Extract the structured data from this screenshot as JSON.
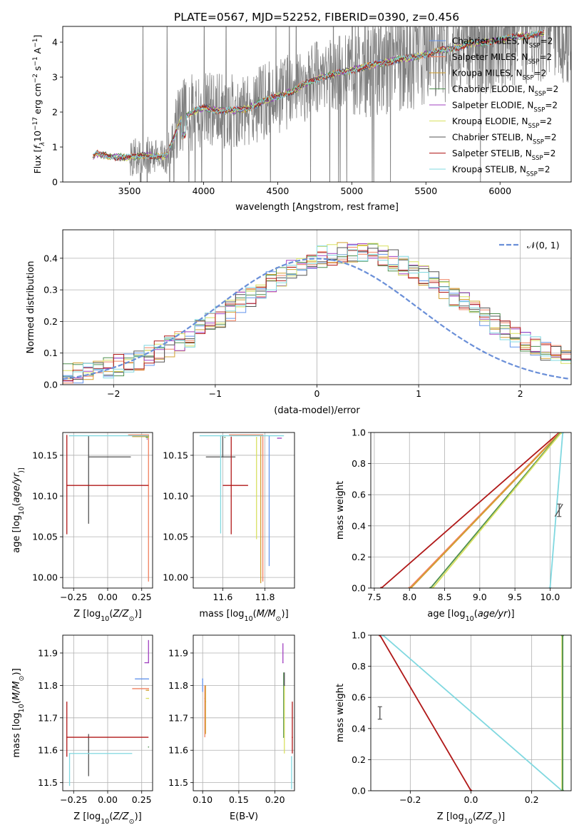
{
  "figure_title": "PLATE=0567, MJD=52252, FIBERID=0390, z=0.456",
  "colors": {
    "Chabrier MILES": "#6495ed",
    "Salpeter MILES": "#f08060",
    "Kroupa MILES": "#d2a030",
    "Chabrier ELODIE": "#4f8f4f",
    "Salpeter ELODIE": "#a040c0",
    "Kroupa ELODIE": "#d8e060",
    "Chabrier STELIB": "#555555",
    "Salpeter STELIB": "#b01818",
    "Kroupa STELIB": "#80d8e0",
    "data": "#808080",
    "normal": "#6a8fd8",
    "grid": "#b0b0b0"
  },
  "chart_data": [
    {
      "id": "spectrum",
      "type": "line",
      "xlabel": "wavelength [Angstrom, rest frame]",
      "ylabel_parts": [
        "Flux [",
        "f",
        "λ",
        "10",
        "−17",
        " erg cm",
        "−2",
        " s",
        "−1",
        " A",
        "−1",
        "]"
      ],
      "xlim": [
        3050,
        6480
      ],
      "ylim": [
        0,
        4.45
      ],
      "xticks": [
        3500,
        4000,
        4500,
        5000,
        5500,
        6000
      ],
      "yticks": [
        0,
        1,
        2,
        3,
        4
      ],
      "legend_position": "upper right",
      "legend": [
        {
          "model": "Chabrier MILES",
          "label": "Chabrier MILES, N",
          "sub": "SSP",
          "suffix": "=2"
        },
        {
          "model": "Salpeter MILES",
          "label": "Salpeter MILES, N",
          "sub": "SSP",
          "suffix": "=2"
        },
        {
          "model": "Kroupa MILES",
          "label": "Kroupa MILES, N",
          "sub": "SSP",
          "suffix": "=2"
        },
        {
          "model": "Chabrier ELODIE",
          "label": "Chabrier ELODIE, N",
          "sub": "SSP",
          "suffix": "=2"
        },
        {
          "model": "Salpeter ELODIE",
          "label": "Salpeter ELODIE, N",
          "sub": "SSP",
          "suffix": "=2"
        },
        {
          "model": "Kroupa ELODIE",
          "label": "Kroupa ELODIE, N",
          "sub": "SSP",
          "suffix": "=2"
        },
        {
          "model": "Chabrier STELIB",
          "label": "Chabrier STELIB, N",
          "sub": "SSP",
          "suffix": "=2"
        },
        {
          "model": "Salpeter STELIB",
          "label": "Salpeter STELIB, N",
          "sub": "SSP",
          "suffix": "=2"
        },
        {
          "model": "Kroupa STELIB",
          "label": "Kroupa STELIB, N",
          "sub": "SSP",
          "suffix": "=2"
        }
      ],
      "data_range": [
        3250,
        6480
      ],
      "model_trend": {
        "x": [
          3250,
          3280,
          3300,
          3400,
          3500,
          3600,
          3700,
          3750,
          3850,
          3950,
          4000,
          4100,
          4200,
          4300,
          4400,
          4500,
          4600,
          4700,
          4800,
          4900,
          5000,
          5100,
          5200,
          5300,
          5400,
          5500,
          5600,
          5700,
          5800,
          5900,
          6000,
          6100,
          6200,
          6300
        ],
        "y": [
          0.7,
          0.82,
          0.78,
          0.72,
          0.7,
          0.78,
          0.72,
          0.75,
          1.8,
          2.05,
          2.12,
          2.05,
          2.05,
          2.1,
          2.3,
          2.45,
          2.6,
          2.85,
          3.0,
          3.1,
          3.2,
          3.3,
          3.4,
          3.5,
          3.55,
          3.65,
          3.75,
          3.85,
          3.95,
          4.0,
          4.05,
          4.15,
          4.2,
          4.25
        ]
      }
    },
    {
      "id": "residuals",
      "type": "step",
      "xlabel": "(data-model)/error",
      "ylabel": "Normed distribution",
      "xlim": [
        -2.5,
        2.5
      ],
      "ylim": [
        0,
        0.49
      ],
      "xticks": [
        -2,
        -1,
        0,
        1,
        2
      ],
      "yticks": [
        0.0,
        0.1,
        0.2,
        0.3,
        0.4
      ],
      "legend_position": "upper right",
      "legend": [
        {
          "label": "𝒩(0, 1)"
        }
      ],
      "bins": 50,
      "bin_width": 0.1
    },
    {
      "id": "age_vs_Z",
      "type": "errorbar",
      "xlabel_parts": [
        "Z [log",
        "10",
        "(",
        "Z/Z",
        "⊙",
        ")]"
      ],
      "ylabel_parts": [
        "age  [log",
        "10",
        "(",
        "age/yr",
        ")]"
      ],
      "xlim": [
        -0.33,
        0.33
      ],
      "ylim": [
        9.987,
        10.178
      ],
      "xticks": [
        -0.25,
        0.0,
        0.25
      ],
      "yticks": [
        10.0,
        10.05,
        10.1,
        10.15
      ],
      "points": [
        {
          "model": "Chabrier MILES",
          "x": 0.3,
          "y": 10.174,
          "xl": 0.06,
          "xr": 0.0,
          "yl": 0.0,
          "yu": 0.0
        },
        {
          "model": "Salpeter MILES",
          "x": 0.3,
          "y": 10.175,
          "xl": 0.15,
          "xr": 0.0,
          "yl": 0.18,
          "yu": 0.0
        },
        {
          "model": "Kroupa MILES",
          "x": 0.3,
          "y": 10.173,
          "xl": 0.12,
          "xr": 0.0,
          "yl": 0.0,
          "yu": 0.0
        },
        {
          "model": "Chabrier ELODIE",
          "x": 0.3,
          "y": 10.172,
          "xl": 0.02,
          "xr": 0.0,
          "yl": 0.0,
          "yu": 0.0
        },
        {
          "model": "Salpeter ELODIE",
          "x": 0.29,
          "y": 10.17,
          "xl": 0.0,
          "xr": 0.0,
          "yl": 0.0,
          "yu": 0.0
        },
        {
          "model": "Kroupa ELODIE",
          "x": 0.3,
          "y": 10.172,
          "xl": 0.0,
          "xr": 0.0,
          "yl": 0.0,
          "yu": 0.0
        },
        {
          "model": "Chabrier STELIB",
          "x": -0.14,
          "y": 10.148,
          "xl": 0.0,
          "xr": 0.31,
          "yl": 0.082,
          "yu": 0.026
        },
        {
          "model": "Salpeter STELIB",
          "x": -0.3,
          "y": 10.113,
          "xl": 0.0,
          "xr": 0.6,
          "yl": 0.06,
          "yu": 0.062
        },
        {
          "model": "Kroupa STELIB",
          "x": -0.28,
          "y": 10.174,
          "xl": 0.0,
          "xr": 0.58,
          "yl": 0.0,
          "yu": 0.0
        }
      ]
    },
    {
      "id": "age_vs_mass",
      "type": "errorbar",
      "xlabel_parts": [
        "mass [log",
        "10",
        "(",
        "M/M",
        "⊙",
        ")]"
      ],
      "ylabel_parts": [],
      "xlim": [
        11.46,
        11.94
      ],
      "ylim": [
        9.987,
        10.178
      ],
      "xticks": [
        11.6,
        11.8
      ],
      "yticks": [
        10.0,
        10.05,
        10.1,
        10.15
      ],
      "points": [
        {
          "model": "Chabrier MILES",
          "x": 11.82,
          "y": 10.174,
          "xl": 0.0,
          "xr": 0.0,
          "yl": 0.16,
          "yu": 0.0
        },
        {
          "model": "Salpeter MILES",
          "x": 11.79,
          "y": 10.175,
          "xl": 0.16,
          "xr": 0.0,
          "yl": 0.18,
          "yu": 0.0
        },
        {
          "model": "Kroupa MILES",
          "x": 11.78,
          "y": 10.173,
          "xl": 0.0,
          "xr": 0.0,
          "yl": 0.18,
          "yu": 0.0
        },
        {
          "model": "Chabrier ELODIE",
          "x": 11.61,
          "y": 10.172,
          "xl": 0.0,
          "xr": 0.0,
          "yl": 0.0,
          "yu": 0.0
        },
        {
          "model": "Salpeter ELODIE",
          "x": 11.86,
          "y": 10.171,
          "xl": 0.0,
          "xr": 0.02,
          "yl": 0.0,
          "yu": 0.0
        },
        {
          "model": "Kroupa ELODIE",
          "x": 11.76,
          "y": 10.172,
          "xl": 0.0,
          "xr": 0.0,
          "yl": 0.125,
          "yu": 0.0
        },
        {
          "model": "Chabrier STELIB",
          "x": 11.6,
          "y": 10.148,
          "xl": 0.08,
          "xr": 0.06,
          "yl": 0.0,
          "yu": 0.026
        },
        {
          "model": "Salpeter STELIB",
          "x": 11.64,
          "y": 10.113,
          "xl": 0.04,
          "xr": 0.08,
          "yl": 0.06,
          "yu": 0.06
        },
        {
          "model": "Kroupa STELIB",
          "x": 11.59,
          "y": 10.174,
          "xl": 0.1,
          "xr": 0.3,
          "yl": 0.12,
          "yu": 0.0
        }
      ]
    },
    {
      "id": "mass_vs_Z",
      "type": "errorbar",
      "xlabel_parts": [
        "Z [log",
        "10",
        "(",
        "Z/Z",
        "⊙",
        ")]"
      ],
      "ylabel_parts": [
        "mass [log",
        "10",
        "(",
        "M/M",
        "⊙",
        ")]"
      ],
      "xlim": [
        -0.33,
        0.33
      ],
      "ylim": [
        11.475,
        11.955
      ],
      "xticks": [
        -0.25,
        0.0,
        0.25
      ],
      "yticks": [
        11.5,
        11.6,
        11.7,
        11.8,
        11.9
      ],
      "points": [
        {
          "model": "Chabrier MILES",
          "x": 0.3,
          "y": 11.82,
          "xl": 0.1,
          "xr": 0.0,
          "yl": 0.0,
          "yu": 0.0
        },
        {
          "model": "Salpeter MILES",
          "x": 0.3,
          "y": 11.79,
          "xl": 0.12,
          "xr": 0.0,
          "yl": 0.0,
          "yu": 0.0
        },
        {
          "model": "Kroupa MILES",
          "x": 0.3,
          "y": 11.785,
          "xl": 0.02,
          "xr": 0.0,
          "yl": 0.0,
          "yu": 0.0
        },
        {
          "model": "Chabrier ELODIE",
          "x": 0.3,
          "y": 11.61,
          "xl": 0.0,
          "xr": 0.0,
          "yl": 0.0,
          "yu": 0.0
        },
        {
          "model": "Salpeter ELODIE",
          "x": 0.3,
          "y": 11.87,
          "xl": 0.03,
          "xr": 0.0,
          "yl": 0.0,
          "yu": 0.07
        },
        {
          "model": "Kroupa ELODIE",
          "x": 0.3,
          "y": 11.76,
          "xl": 0.02,
          "xr": 0.0,
          "yl": 0.0,
          "yu": 0.0
        },
        {
          "model": "Chabrier STELIB",
          "x": -0.14,
          "y": 11.6,
          "xl": 0.0,
          "xr": 0.0,
          "yl": 0.08,
          "yu": 0.05
        },
        {
          "model": "Salpeter STELIB",
          "x": -0.3,
          "y": 11.64,
          "xl": 0.0,
          "xr": 0.6,
          "yl": 0.06,
          "yu": 0.11
        },
        {
          "model": "Kroupa STELIB",
          "x": -0.28,
          "y": 11.59,
          "xl": 0.0,
          "xr": 0.46,
          "yl": 0.1,
          "yu": 0.0
        }
      ]
    },
    {
      "id": "mass_vs_EBV",
      "type": "errorbar",
      "xlabel": "E(B-V)",
      "ylabel_parts": [],
      "xlim": [
        0.087,
        0.227
      ],
      "ylim": [
        11.475,
        11.955
      ],
      "xticks": [
        0.1,
        0.15,
        0.2
      ],
      "yticks": [
        11.5,
        11.6,
        11.7,
        11.8,
        11.9
      ],
      "points": [
        {
          "model": "Chabrier MILES",
          "x": 0.1,
          "y": 11.82,
          "xl": 0.0,
          "xr": 0.0,
          "yl": 0.04,
          "yu": 0.0
        },
        {
          "model": "Salpeter MILES",
          "x": 0.103,
          "y": 11.76,
          "xl": 0.0,
          "xr": 0.0,
          "yl": 0.12,
          "yu": 0.04
        },
        {
          "model": "Kroupa MILES",
          "x": 0.104,
          "y": 11.75,
          "xl": 0.0,
          "xr": 0.0,
          "yl": 0.1,
          "yu": 0.05
        },
        {
          "model": "Chabrier ELODIE",
          "x": 0.212,
          "y": 11.64,
          "xl": 0.0,
          "xr": 0.0,
          "yl": 0.0,
          "yu": 0.2
        },
        {
          "model": "Salpeter ELODIE",
          "x": 0.211,
          "y": 11.87,
          "xl": 0.0,
          "xr": 0.0,
          "yl": 0.0,
          "yu": 0.06
        },
        {
          "model": "Kroupa ELODIE",
          "x": 0.213,
          "y": 11.7,
          "xl": 0.0,
          "xr": 0.0,
          "yl": 0.11,
          "yu": 0.1
        },
        {
          "model": "Chabrier STELIB",
          "x": 0.213,
          "y": 11.8,
          "xl": 0.0,
          "xr": 0.0,
          "yl": 0.0,
          "yu": 0.04
        },
        {
          "model": "Salpeter STELIB",
          "x": 0.224,
          "y": 11.64,
          "xl": 0.0,
          "xr": 0.0,
          "yl": 0.05,
          "yu": 0.11
        },
        {
          "model": "Kroupa STELIB",
          "x": 0.223,
          "y": 11.58,
          "xl": 0.0,
          "xr": 0.0,
          "yl": 0.1,
          "yu": 0.0
        }
      ]
    },
    {
      "id": "weight_vs_age",
      "type": "line",
      "xlabel_parts": [
        "age  [log",
        "10",
        "(",
        "age/yr",
        ")]"
      ],
      "ylabel": "mass weight",
      "xlim": [
        7.45,
        10.3
      ],
      "ylim": [
        0,
        1
      ],
      "xticks": [
        7.5,
        8.0,
        8.5,
        9.0,
        9.5,
        10.0
      ],
      "yticks": [
        0.0,
        0.2,
        0.4,
        0.6,
        0.8,
        1.0
      ],
      "lines": [
        {
          "model": "Salpeter STELIB",
          "x": [
            7.6,
            10.13
          ],
          "y": [
            0.0,
            1.0
          ]
        },
        {
          "model": "Salpeter MILES",
          "x": [
            8.0,
            10.14
          ],
          "y": [
            0.0,
            1.0
          ]
        },
        {
          "model": "Kroupa MILES",
          "x": [
            8.02,
            10.15
          ],
          "y": [
            0.0,
            1.0
          ]
        },
        {
          "model": "Chabrier ELODIE",
          "x": [
            8.3,
            10.15
          ],
          "y": [
            0.0,
            1.0
          ]
        },
        {
          "model": "Kroupa ELODIE",
          "x": [
            8.33,
            10.16
          ],
          "y": [
            0.0,
            1.0
          ]
        },
        {
          "model": "Kroupa STELIB",
          "x": [
            10.0,
            10.18
          ],
          "y": [
            0.0,
            1.0
          ]
        }
      ],
      "errorbars": [
        {
          "model": "Chabrier STELIB",
          "x": 10.13,
          "y": 0.5,
          "xl": 0.06,
          "xr": 0.05,
          "yl": 0.04,
          "yu": 0.04
        }
      ]
    },
    {
      "id": "weight_vs_Z",
      "type": "line",
      "xlabel_parts": [
        "Z [log",
        "10",
        "(",
        "Z/Z",
        "⊙",
        ")]"
      ],
      "ylabel": "mass weight",
      "xlim": [
        -0.33,
        0.33
      ],
      "ylim": [
        0,
        1
      ],
      "xticks": [
        -0.2,
        0.0,
        0.2
      ],
      "yticks": [
        0.0,
        0.2,
        0.4,
        0.6,
        0.8,
        1.0
      ],
      "lines": [
        {
          "model": "Salpeter STELIB",
          "x": [
            -0.3,
            0.0
          ],
          "y": [
            1.0,
            0.0
          ]
        },
        {
          "model": "Kroupa STELIB",
          "x": [
            -0.29,
            0.3
          ],
          "y": [
            1.0,
            0.0
          ]
        },
        {
          "model": "Kroupa ELODIE",
          "x": [
            0.3,
            0.3
          ],
          "y": [
            0.0,
            1.0
          ]
        },
        {
          "model": "Chabrier ELODIE",
          "x": [
            0.302,
            0.302
          ],
          "y": [
            0.0,
            1.0
          ]
        }
      ],
      "errorbars": [
        {
          "model": "Chabrier STELIB",
          "x": -0.3,
          "y": 0.5,
          "xl": 0.0,
          "xr": 0.0,
          "yl": 0.04,
          "yu": 0.04
        }
      ]
    }
  ]
}
